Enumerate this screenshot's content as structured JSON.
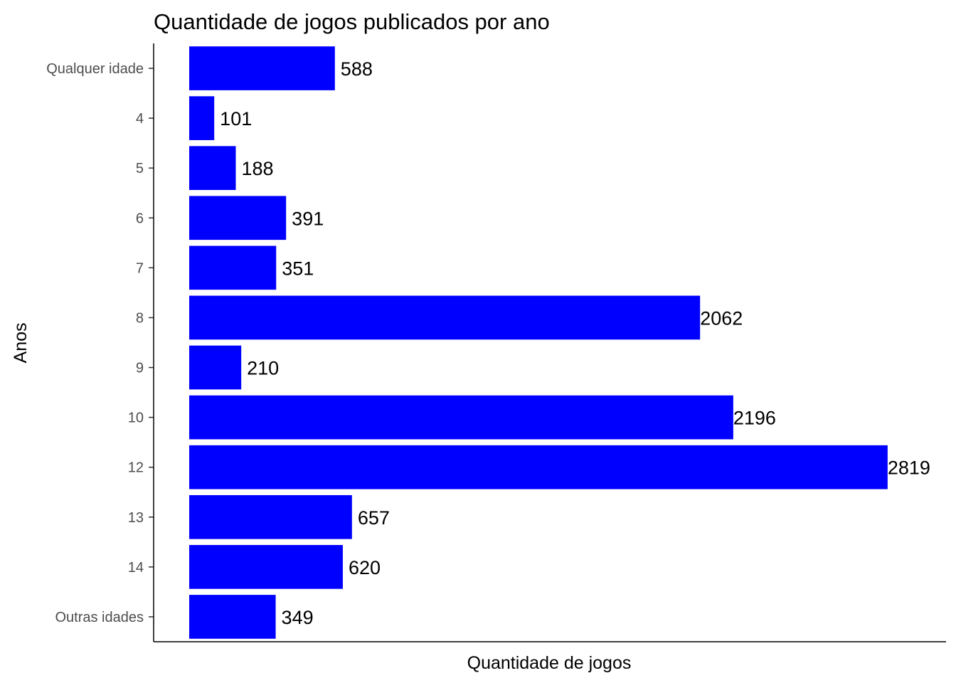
{
  "chart_data": {
    "type": "bar",
    "orientation": "horizontal",
    "title": "Quantidade de jogos publicados por ano",
    "xlabel": "Quantidade de jogos",
    "ylabel": "Anos",
    "categories": [
      "Qualquer idade",
      "4",
      "5",
      "6",
      "7",
      "8",
      "9",
      "10",
      "12",
      "13",
      "14",
      "Outras idades"
    ],
    "values": [
      588,
      101,
      188,
      391,
      351,
      2062,
      210,
      2196,
      2819,
      657,
      620,
      349
    ],
    "xlim": [
      0,
      3060
    ],
    "bar_color": "#0000ff",
    "grid": false,
    "legend": "none",
    "show_value_labels": true
  }
}
